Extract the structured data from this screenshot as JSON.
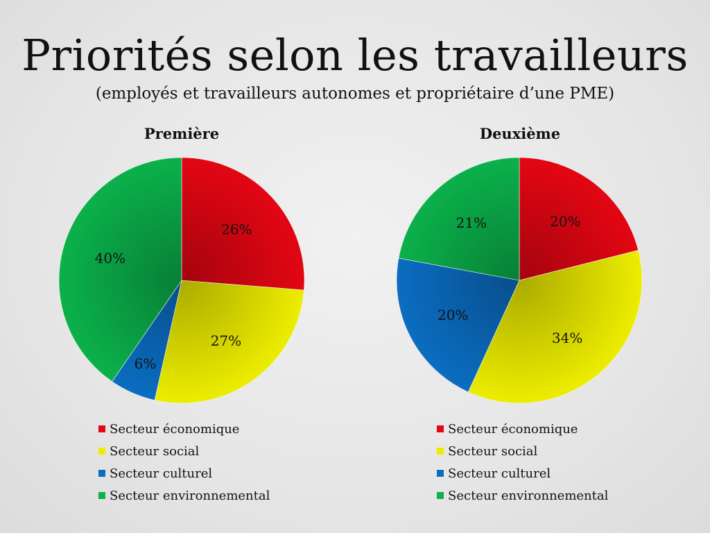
{
  "title": "Priorités selon les travailleurs",
  "subtitle": "(employés et travailleurs autonomes et propriétaire d’une PME)",
  "colors": {
    "economique": "#e30613",
    "social": "#eded00",
    "culturel": "#0b6dc1",
    "environnemental": "#0bb14b"
  },
  "chart_data": [
    {
      "type": "pie",
      "title": "Première",
      "categories": [
        "Secteur économique",
        "Secteur social",
        "Secteur culturel",
        "Secteur environnemental"
      ],
      "values": [
        26,
        27,
        6,
        40
      ],
      "labels": [
        "26%",
        "27%",
        "6%",
        "40%"
      ],
      "legend": "bottom"
    },
    {
      "type": "pie",
      "title": "Deuxième",
      "categories": [
        "Secteur économique",
        "Secteur social",
        "Secteur culturel",
        "Secteur environnemental"
      ],
      "values": [
        20,
        34,
        20,
        21
      ],
      "labels": [
        "20%",
        "34%",
        "20%",
        "21%"
      ],
      "legend": "bottom"
    }
  ]
}
